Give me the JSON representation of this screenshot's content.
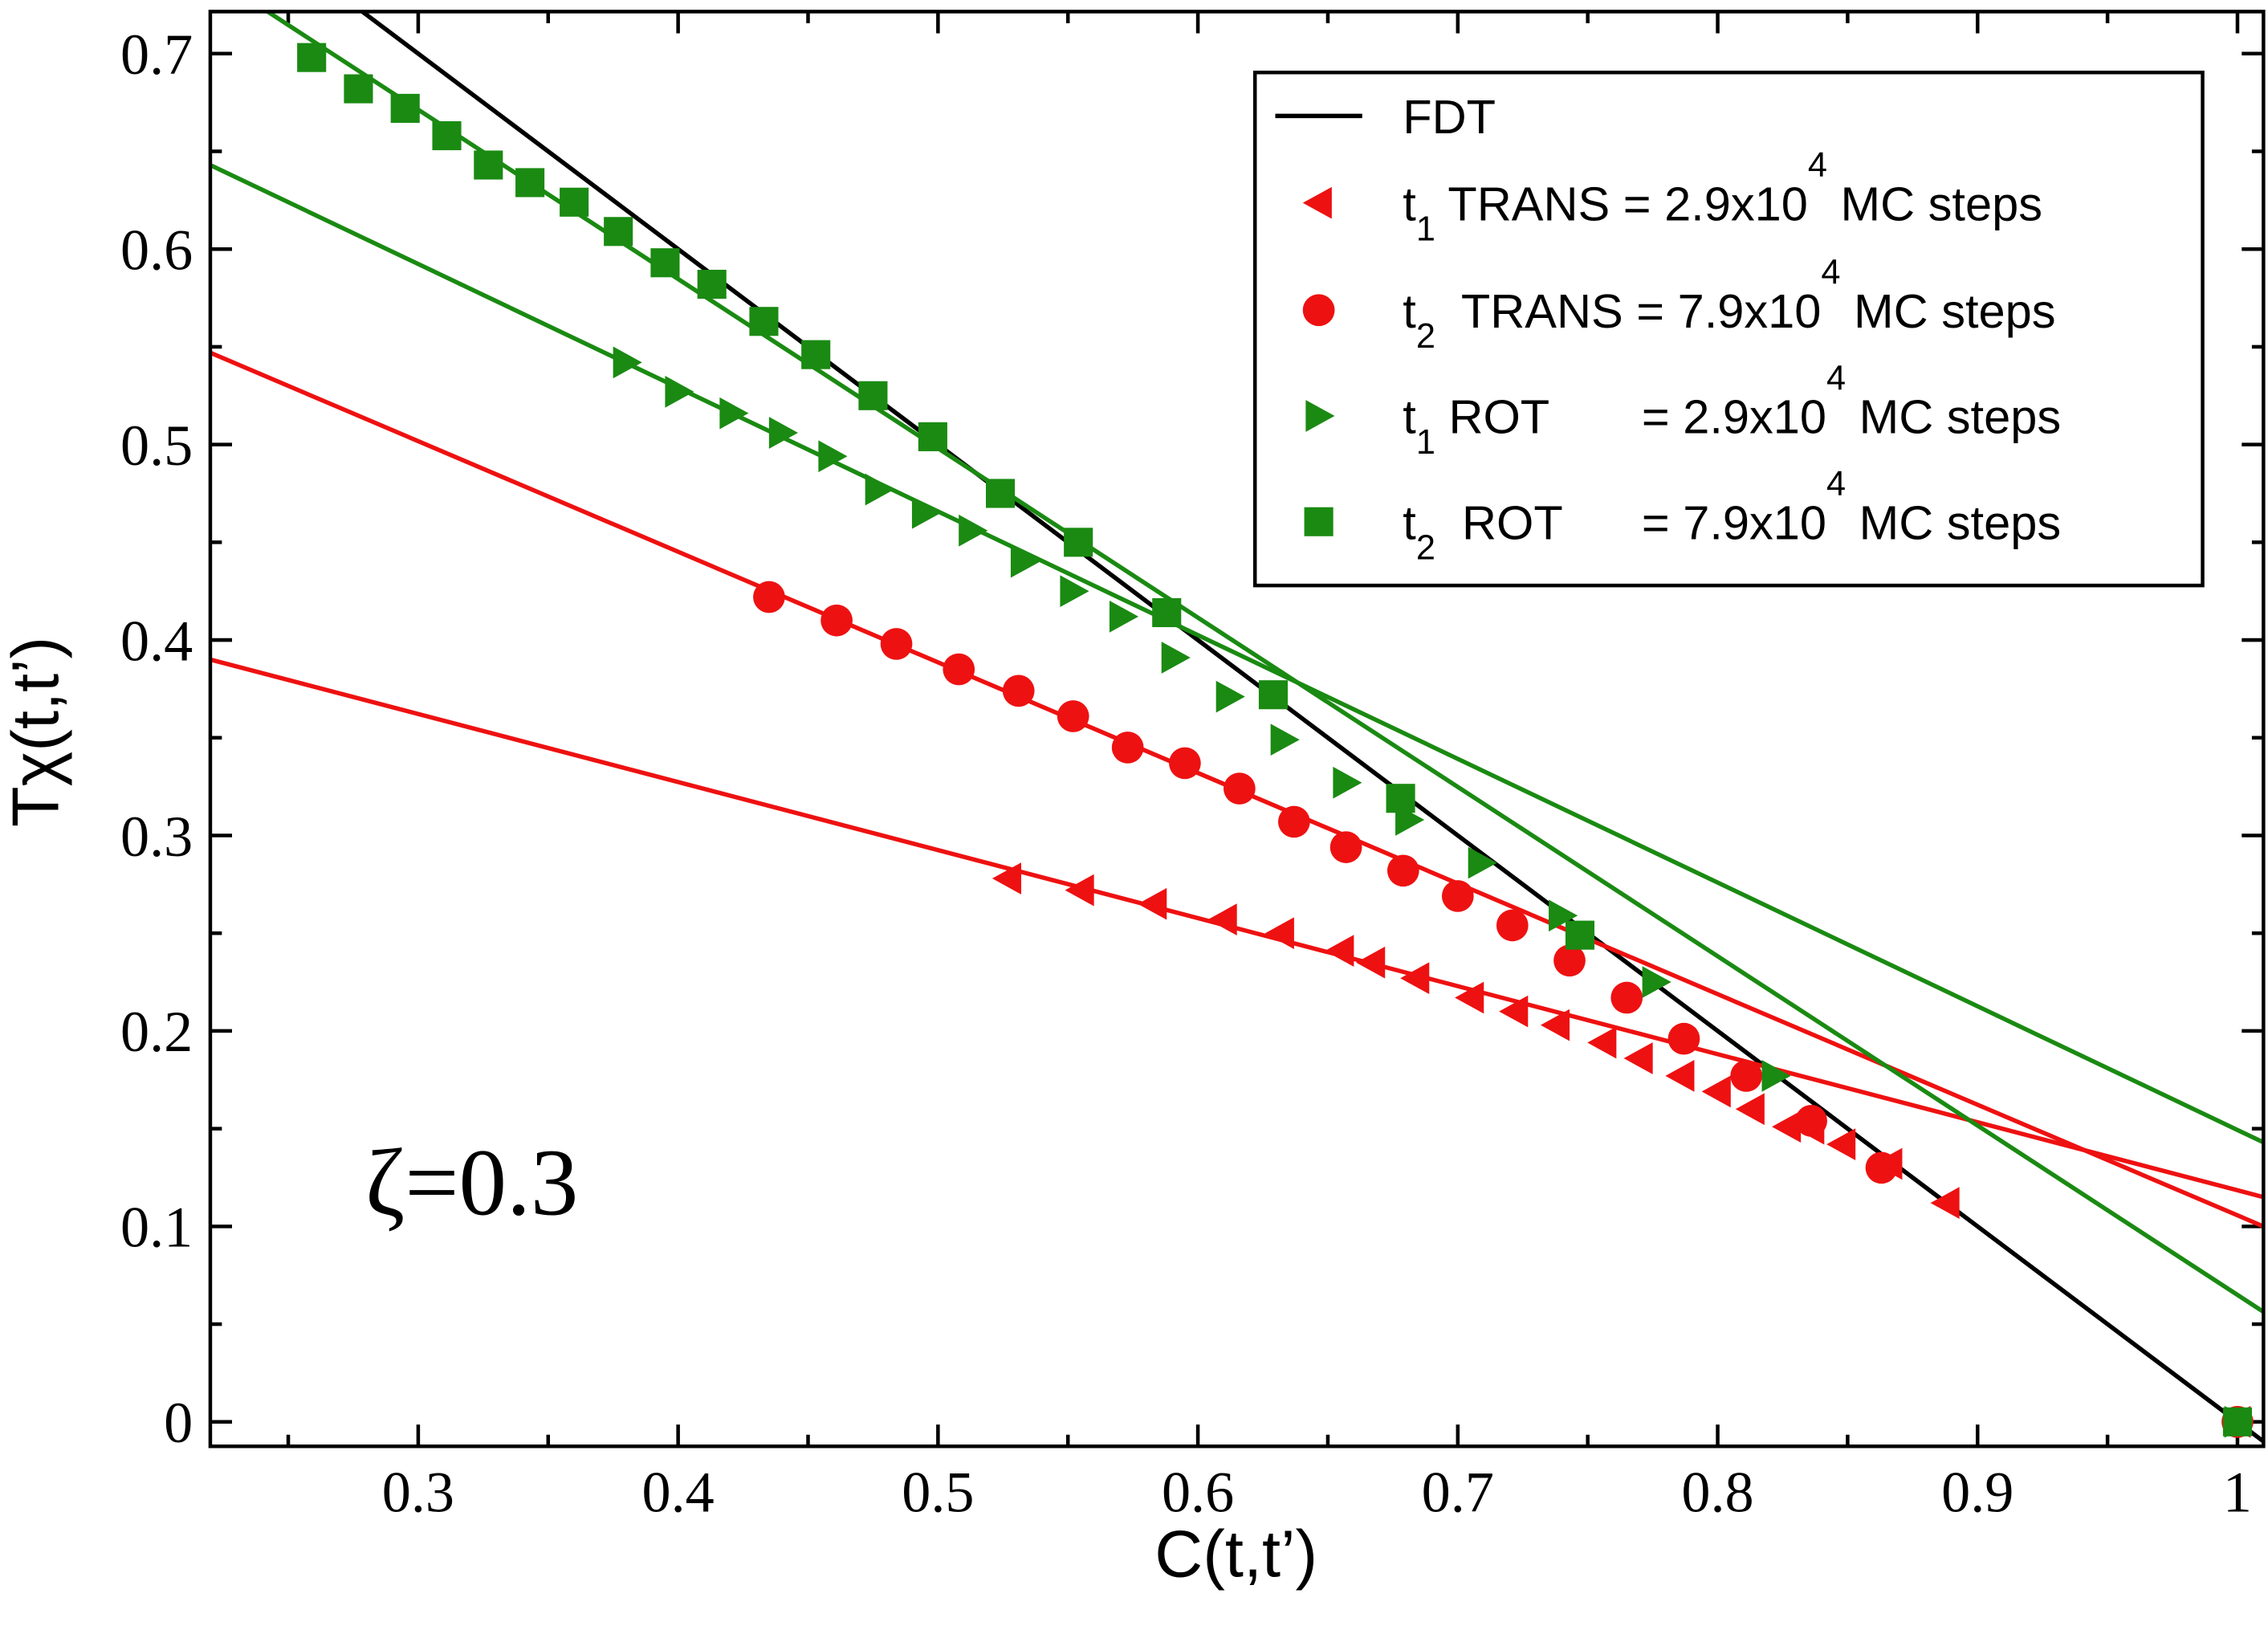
{
  "chart_data": {
    "type": "scatter",
    "xlabel": "C(t,t’)",
    "ylabel": "Tχ(t,t’)",
    "annotation": "ζ=0.3",
    "xlim": [
      0.22,
      1.01
    ],
    "ylim": [
      -0.0125,
      0.7215
    ],
    "xticks": [
      0.3,
      0.4,
      0.5,
      0.6,
      0.7,
      0.8,
      0.9,
      1
    ],
    "yticks": [
      0,
      0.1,
      0.2,
      0.3,
      0.4,
      0.5,
      0.6,
      0.7
    ],
    "xminorticks": [
      0.25,
      0.35,
      0.45,
      0.55,
      0.65,
      0.75,
      0.85,
      0.95
    ],
    "yminorticks": [
      0.05,
      0.15,
      0.25,
      0.35,
      0.45,
      0.55,
      0.65
    ],
    "legend": "upper right",
    "series": [
      {
        "name": "FDT",
        "color": "#000000",
        "marker": "none",
        "x": [
          0.278,
          1.01
        ],
        "values": [
          0.722,
          -0.01
        ]
      },
      {
        "name": [
          {
            "text": "t"
          },
          {
            "sub": "1"
          },
          {
            "text": " TRANS = 2.9x10"
          },
          {
            "sup": "4"
          },
          {
            "text": " MC steps"
          }
        ],
        "color": "#ee1111",
        "marker": "triangle-left",
        "x": [
          0.527,
          0.555,
          0.583,
          0.61,
          0.632,
          0.655,
          0.667,
          0.684,
          0.705,
          0.722,
          0.738,
          0.756,
          0.77,
          0.786,
          0.8,
          0.813,
          0.827,
          0.836,
          0.848,
          0.866,
          0.888,
          1.0
        ],
        "values": [
          0.278,
          0.272,
          0.265,
          0.257,
          0.25,
          0.241,
          0.235,
          0.227,
          0.217,
          0.21,
          0.203,
          0.194,
          0.186,
          0.177,
          0.169,
          0.16,
          0.151,
          0.15,
          0.142,
          0.132,
          0.112,
          0
        ]
      },
      {
        "name": [
          {
            "text": "t"
          },
          {
            "sub": "2"
          },
          {
            "text": "  TRANS = 7.9x10"
          },
          {
            "sup": "4"
          },
          {
            "text": " MC steps"
          }
        ],
        "color": "#ee1111",
        "marker": "circle",
        "x": [
          0.435,
          0.461,
          0.484,
          0.508,
          0.531,
          0.552,
          0.573,
          0.595,
          0.616,
          0.637,
          0.657,
          0.679,
          0.7,
          0.721,
          0.743,
          0.765,
          0.787,
          0.811,
          0.836,
          0.863,
          1.0
        ],
        "values": [
          0.422,
          0.41,
          0.398,
          0.385,
          0.374,
          0.361,
          0.345,
          0.337,
          0.324,
          0.307,
          0.294,
          0.282,
          0.269,
          0.254,
          0.236,
          0.217,
          0.196,
          0.177,
          0.154,
          0.13,
          0
        ]
      },
      {
        "name": [
          {
            "text": "t"
          },
          {
            "sub": "1"
          },
          {
            "text": " ROT       = 2.9x10"
          },
          {
            "sup": "4"
          },
          {
            "text": " MC steps"
          }
        ],
        "color": "#1a8a12",
        "marker": "triangle-right",
        "x": [
          0.38,
          0.4,
          0.421,
          0.44,
          0.459,
          0.477,
          0.495,
          0.513,
          0.533,
          0.552,
          0.571,
          0.591,
          0.612,
          0.633,
          0.657,
          0.681,
          0.709,
          0.74,
          0.776,
          0.822,
          1.0
        ],
        "values": [
          0.542,
          0.527,
          0.516,
          0.506,
          0.494,
          0.477,
          0.465,
          0.456,
          0.44,
          0.425,
          0.412,
          0.391,
          0.371,
          0.349,
          0.327,
          0.308,
          0.286,
          0.259,
          0.225,
          0.177,
          0
        ]
      },
      {
        "name": [
          {
            "text": "t"
          },
          {
            "sub": "2"
          },
          {
            "text": "  ROT      = 7.9x10"
          },
          {
            "sup": "4"
          },
          {
            "text": " MC steps"
          }
        ],
        "color": "#1a8a12",
        "marker": "square",
        "x": [
          0.259,
          0.277,
          0.295,
          0.311,
          0.327,
          0.343,
          0.36,
          0.377,
          0.395,
          0.413,
          0.433,
          0.453,
          0.475,
          0.498,
          0.524,
          0.554,
          0.588,
          0.629,
          0.678,
          0.747,
          1.0
        ],
        "values": [
          0.698,
          0.682,
          0.672,
          0.658,
          0.643,
          0.634,
          0.624,
          0.609,
          0.593,
          0.582,
          0.563,
          0.546,
          0.525,
          0.504,
          0.475,
          0.45,
          0.414,
          0.372,
          0.319,
          0.249,
          0
        ]
      },
      {
        "color": "#ee1111",
        "marker": "none",
        "x": [
          0.22,
          1.01
        ],
        "values": [
          0.39,
          0.115
        ]
      },
      {
        "color": "#ee1111",
        "marker": "none",
        "x": [
          0.22,
          1.01
        ],
        "values": [
          0.547,
          0.1
        ]
      },
      {
        "color": "#1a8a12",
        "marker": "none",
        "x": [
          0.22,
          1.01
        ],
        "values": [
          0.643,
          0.143
        ]
      },
      {
        "color": "#1a8a12",
        "marker": "none",
        "x": [
          0.2415,
          1.01
        ],
        "values": [
          0.722,
          0.0563
        ]
      }
    ]
  }
}
